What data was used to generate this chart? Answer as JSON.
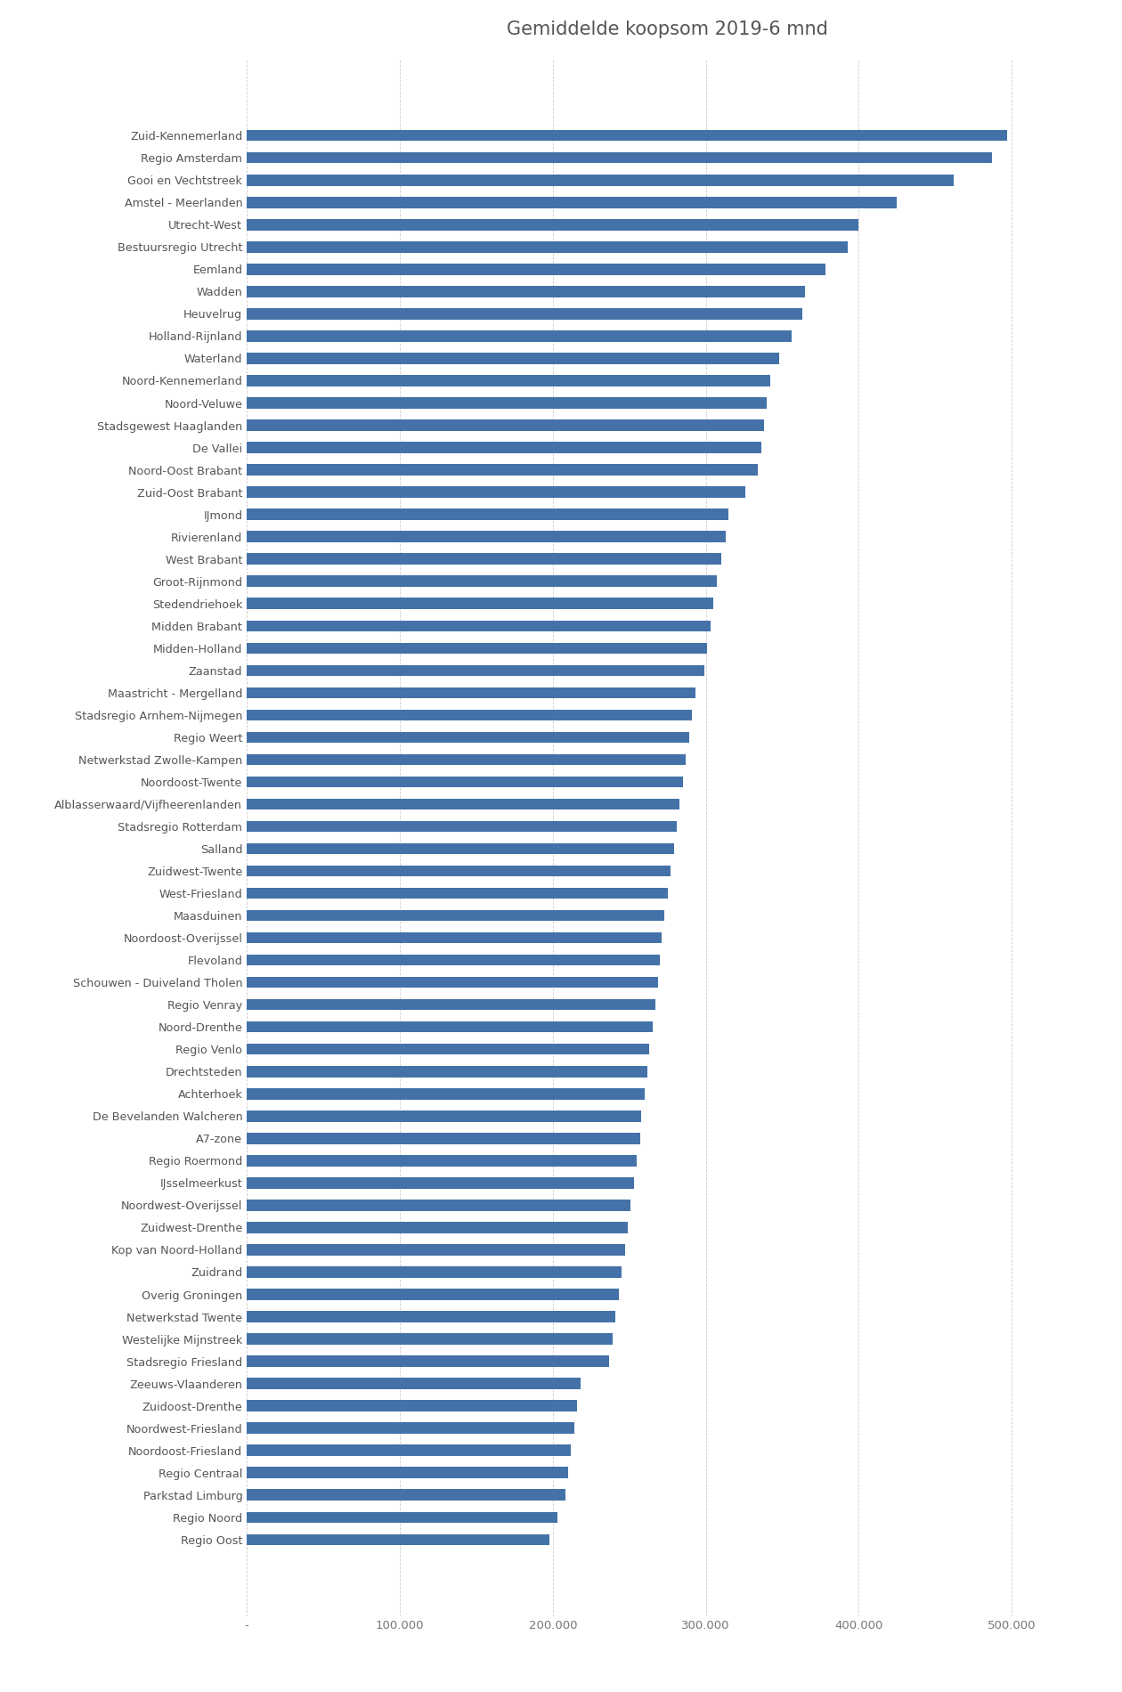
{
  "title": "Gemiddelde koopsom 2019-6 mnd",
  "bar_color": "#4472a8",
  "categories": [
    "Zuid-Kennemerland",
    "Regio Amsterdam",
    "Gooi en Vechtstreek",
    "Amstel - Meerlanden",
    "Utrecht-West",
    "Bestuursregio Utrecht",
    "Eemland",
    "Wadden",
    "Heuvelrug",
    "Holland-Rijnland",
    "Waterland",
    "Noord-Kennemerland",
    "Noord-Veluwe",
    "Stadsgewest Haaglanden",
    "De Vallei",
    "Noord-Oost Brabant",
    "Zuid-Oost Brabant",
    "IJmond",
    "Rivierenland",
    "West Brabant",
    "Groot-Rijnmond",
    "Stedendriehoek",
    "Midden Brabant",
    "Midden-Holland",
    "Zaanstad",
    "Maastricht - Mergelland",
    "Stadsregio Arnhem-Nijmegen",
    "Regio Weert",
    "Netwerkstad Zwolle-Kampen",
    "Noordoost-Twente",
    "Alblasserwaard/Vijfheerenlanden",
    "Stadsregio Rotterdam",
    "Salland",
    "Zuidwest-Twente",
    "West-Friesland",
    "Maasduinen",
    "Noordoost-Overijssel",
    "Flevoland",
    "Schouwen - Duiveland Tholen",
    "Regio Venray",
    "Noord-Drenthe",
    "Regio Venlo",
    "Drechtsteden",
    "Achterhoek",
    "De Bevelanden Walcheren",
    "A7-zone",
    "Regio Roermond",
    "IJsselmeerkust",
    "Noordwest-Overijssel",
    "Zuidwest-Drenthe",
    "Kop van Noord-Holland",
    "Zuidrand",
    "Overig Groningen",
    "Netwerkstad Twente",
    "Westelijke Mijnstreek",
    "Stadsregio Friesland",
    "Zeeuws-Vlaanderen",
    "Zuidoost-Drenthe",
    "Noordwest-Friesland",
    "Noordoost-Friesland",
    "Regio Centraal",
    "Parkstad Limburg",
    "Regio Noord",
    "Regio Oost"
  ],
  "values": [
    497000,
    487000,
    462000,
    425000,
    400000,
    393000,
    378000,
    365000,
    363000,
    356000,
    348000,
    342000,
    340000,
    338000,
    336000,
    334000,
    326000,
    315000,
    313000,
    310000,
    307000,
    305000,
    303000,
    301000,
    299000,
    293000,
    291000,
    289000,
    287000,
    285000,
    283000,
    281000,
    279000,
    277000,
    275000,
    273000,
    271000,
    270000,
    269000,
    267000,
    265000,
    263000,
    262000,
    260000,
    258000,
    257000,
    255000,
    253000,
    251000,
    249000,
    247000,
    245000,
    243000,
    241000,
    239000,
    237000,
    218000,
    216000,
    214000,
    212000,
    210000,
    208000,
    203000,
    198000
  ],
  "xlim": [
    0,
    550000
  ],
  "xticks": [
    0,
    100000,
    200000,
    300000,
    400000,
    500000
  ],
  "xtick_labels": [
    "-",
    "100.000",
    "200.000",
    "300.000",
    "400.000",
    "500.000"
  ],
  "figsize": [
    12.6,
    19.0
  ],
  "dpi": 100,
  "bar_height": 0.5,
  "title_fontsize": 15,
  "label_fontsize": 9.2,
  "xtick_fontsize": 9.5
}
